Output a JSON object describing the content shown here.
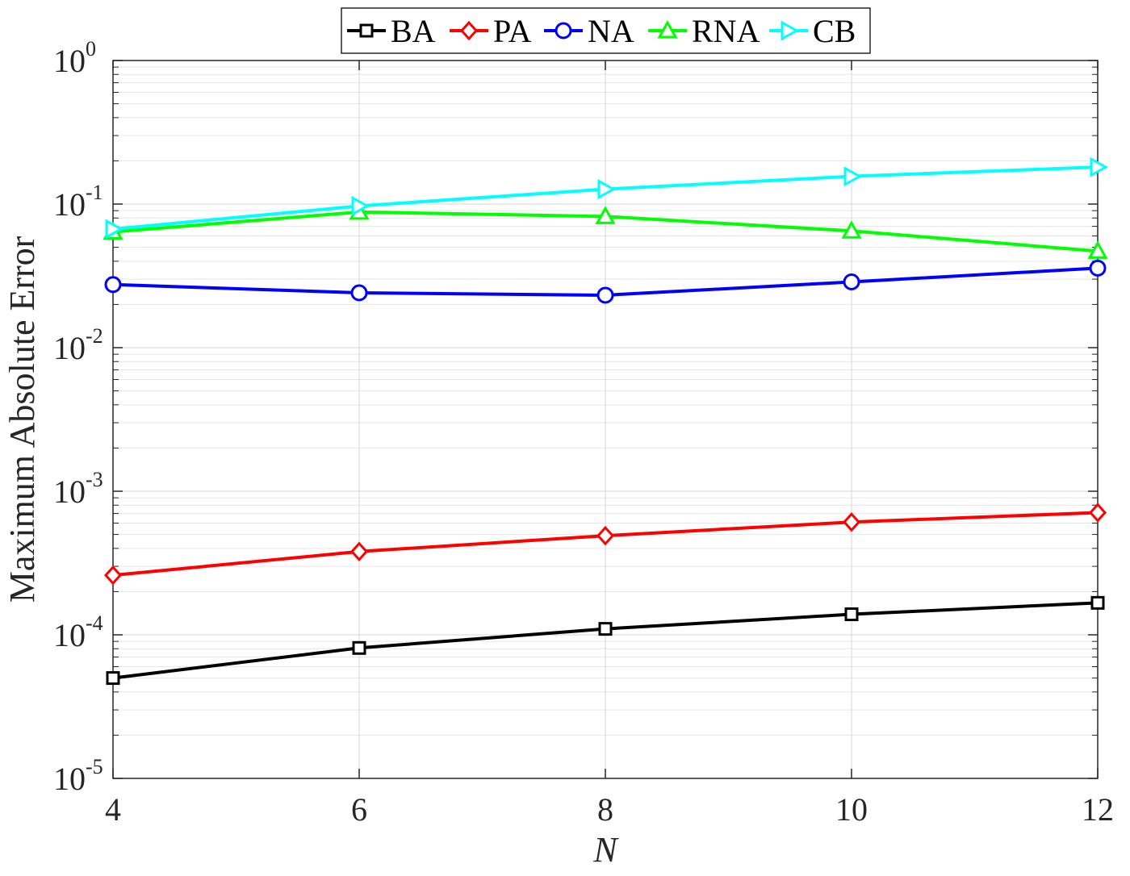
{
  "chart_data": {
    "type": "line",
    "title": "",
    "xlabel": "N",
    "ylabel": "Maximum Absolute Error",
    "yscale": "log",
    "xlim": [
      4,
      12
    ],
    "ylim": [
      1e-05,
      1
    ],
    "grid": true,
    "legend_position": "top-center",
    "x": [
      4,
      6,
      8,
      10,
      12
    ],
    "xticks": [
      4,
      6,
      8,
      10,
      12
    ],
    "xtick_labels": [
      "4",
      "6",
      "8",
      "10",
      "12"
    ],
    "yticks": [
      {
        "base": "10",
        "exp": "0",
        "value": 1
      },
      {
        "base": "10",
        "exp": "-1",
        "value": 0.1
      },
      {
        "base": "10",
        "exp": "-2",
        "value": 0.01
      },
      {
        "base": "10",
        "exp": "-3",
        "value": 0.001
      },
      {
        "base": "10",
        "exp": "-4",
        "value": 0.0001
      },
      {
        "base": "10",
        "exp": "-5",
        "value": 1e-05
      }
    ],
    "series": [
      {
        "name": "BA",
        "color": "#000000",
        "marker": "square",
        "values": [
          5e-05,
          8.1e-05,
          0.00011,
          0.000139,
          0.000167
        ]
      },
      {
        "name": "PA",
        "color": "#ff0000",
        "marker": "diamond",
        "values": [
          0.00026,
          0.00038,
          0.00049,
          0.00061,
          0.00071
        ]
      },
      {
        "name": "NA",
        "color": "#0000ff",
        "marker": "circle",
        "values": [
          0.0275,
          0.0241,
          0.0232,
          0.0287,
          0.0358
        ]
      },
      {
        "name": "RNA",
        "color": "#00ff00",
        "marker": "triangle-up",
        "values": [
          0.064,
          0.088,
          0.082,
          0.065,
          0.047
        ]
      },
      {
        "name": "CB",
        "color": "#00ffff",
        "marker": "triangle-right",
        "values": [
          0.067,
          0.097,
          0.127,
          0.156,
          0.181
        ]
      }
    ]
  }
}
